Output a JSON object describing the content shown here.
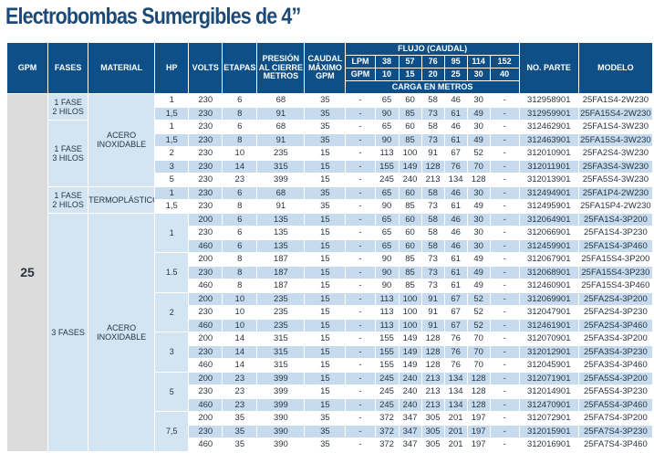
{
  "title": "Electrobombas Sumergibles de 4”",
  "colors": {
    "header": "#0d4f86",
    "stripe": "#c6dcee",
    "group": "#d3e5f3",
    "gpm_cell": "#dcdcdc"
  },
  "headers": {
    "gpm": "GPM",
    "fases": "FASES",
    "material": "MATERIAL",
    "hp": "HP",
    "volts": "VOLTS",
    "etapas": "ETAPAS",
    "presion": "PRESIÓN\nAL CIERRE\nMETROS",
    "caudal": "CAUDAL\nMÁXIMO\nGPM",
    "flujo": "FLUJO (CAUDAL)",
    "lpm_row": [
      "LPM",
      "38",
      "57",
      "76",
      "95",
      "114",
      "152"
    ],
    "gpm_row": [
      "GPM",
      "10",
      "15",
      "20",
      "25",
      "30",
      "40"
    ],
    "carga": "CARGA EN METROS",
    "parte": "NO. PARTE",
    "modelo": "MODELO"
  },
  "gpm_groups": [
    {
      "label": "25",
      "rows": 27
    }
  ],
  "fases_groups": [
    {
      "label": "1 FASE\n2 HILOS",
      "rows": 2
    },
    {
      "label": "1 FASE\n3 HILOS",
      "rows": 5
    },
    {
      "label": "1 FASE\n2 HILOS",
      "rows": 2
    },
    {
      "label": "3 FASES",
      "rows": 18
    }
  ],
  "material_groups": [
    {
      "label": "ACERO\nINOXIDABLE",
      "rows": 7
    },
    {
      "label": "TERMOPLÁSTICO",
      "rows": 2
    },
    {
      "label": "ACERO\nINOXIDABLE",
      "rows": 18
    }
  ],
  "hp_groups": [
    {
      "label": "1",
      "rows": 1
    },
    {
      "label": "1,5",
      "rows": 1
    },
    {
      "label": "1",
      "rows": 1
    },
    {
      "label": "1,5",
      "rows": 1
    },
    {
      "label": "2",
      "rows": 1
    },
    {
      "label": "3",
      "rows": 1
    },
    {
      "label": "5",
      "rows": 1
    },
    {
      "label": "1",
      "rows": 1
    },
    {
      "label": "1,5",
      "rows": 1
    },
    {
      "label": "1",
      "rows": 3
    },
    {
      "label": "1.5",
      "rows": 3
    },
    {
      "label": "2",
      "rows": 3
    },
    {
      "label": "3",
      "rows": 3
    },
    {
      "label": "5",
      "rows": 3
    },
    {
      "label": "7,5",
      "rows": 3
    }
  ],
  "rows": [
    [
      "230",
      "6",
      "68",
      "35",
      "-",
      "65",
      "60",
      "58",
      "46",
      "30",
      "-",
      "312958901",
      "25FA1S4-2W230"
    ],
    [
      "230",
      "8",
      "91",
      "35",
      "-",
      "90",
      "85",
      "73",
      "61",
      "49",
      "-",
      "312959901",
      "25FA15S4-2W230"
    ],
    [
      "230",
      "6",
      "68",
      "35",
      "-",
      "65",
      "60",
      "58",
      "46",
      "30",
      "-",
      "312462901",
      "25FA1S4-3W230"
    ],
    [
      "230",
      "8",
      "91",
      "35",
      "-",
      "90",
      "85",
      "73",
      "61",
      "49",
      "-",
      "312463901",
      "25FA15S4-3W230"
    ],
    [
      "230",
      "10",
      "235",
      "15",
      "-",
      "113",
      "100",
      "91",
      "67",
      "52",
      "-",
      "312010901",
      "25FA2S4-3W230"
    ],
    [
      "230",
      "14",
      "315",
      "15",
      "-",
      "155",
      "149",
      "128",
      "76",
      "70",
      "-",
      "312011901",
      "25FA3S4-3W230"
    ],
    [
      "230",
      "23",
      "399",
      "15",
      "-",
      "245",
      "240",
      "213",
      "134",
      "128",
      "-",
      "312013901",
      "25FA5S4-3W230"
    ],
    [
      "230",
      "6",
      "68",
      "35",
      "-",
      "65",
      "60",
      "58",
      "46",
      "30",
      "-",
      "312494901",
      "25FA1P4-2W230"
    ],
    [
      "230",
      "8",
      "91",
      "35",
      "-",
      "90",
      "85",
      "73",
      "61",
      "49",
      "-",
      "312495901",
      "25FA15P4-2W230"
    ],
    [
      "200",
      "6",
      "135",
      "15",
      "-",
      "65",
      "60",
      "58",
      "46",
      "30",
      "-",
      "312064901",
      "25FA1S4-3P200"
    ],
    [
      "230",
      "6",
      "135",
      "15",
      "-",
      "65",
      "60",
      "58",
      "46",
      "30",
      "-",
      "312066901",
      "25FA1S4-3P230"
    ],
    [
      "460",
      "6",
      "135",
      "15",
      "-",
      "65",
      "60",
      "58",
      "46",
      "30",
      "-",
      "312459901",
      "25FA1S4-3P460"
    ],
    [
      "200",
      "8",
      "187",
      "15",
      "-",
      "90",
      "85",
      "73",
      "61",
      "49",
      "-",
      "312067901",
      "25FA15S4-3P200"
    ],
    [
      "230",
      "8",
      "187",
      "15",
      "-",
      "90",
      "85",
      "73",
      "61",
      "49",
      "-",
      "312068901",
      "25FA15S4-3P230"
    ],
    [
      "460",
      "8",
      "187",
      "15",
      "-",
      "90",
      "85",
      "73",
      "61",
      "49",
      "-",
      "312460901",
      "25FA15S4-3P460"
    ],
    [
      "200",
      "10",
      "235",
      "15",
      "-",
      "113",
      "100",
      "91",
      "67",
      "52",
      "-",
      "312069901",
      "25FA2S4-3P200"
    ],
    [
      "230",
      "10",
      "235",
      "15",
      "-",
      "113",
      "100",
      "91",
      "67",
      "52",
      "-",
      "312047901",
      "25FA2S4-3P230"
    ],
    [
      "460",
      "10",
      "235",
      "15",
      "-",
      "113",
      "100",
      "91",
      "67",
      "52",
      "-",
      "312461901",
      "25FA2S4-3P460"
    ],
    [
      "200",
      "14",
      "315",
      "15",
      "-",
      "155",
      "149",
      "128",
      "76",
      "70",
      "-",
      "312070901",
      "25FA3S4-3P200"
    ],
    [
      "230",
      "14",
      "315",
      "15",
      "-",
      "155",
      "149",
      "128",
      "76",
      "70",
      "-",
      "312012901",
      "25FA3S4-3P230"
    ],
    [
      "460",
      "14",
      "315",
      "15",
      "-",
      "155",
      "149",
      "128",
      "76",
      "70",
      "-",
      "312045901",
      "25FA3S4-3P460"
    ],
    [
      "200",
      "23",
      "399",
      "15",
      "-",
      "245",
      "240",
      "213",
      "134",
      "128",
      "-",
      "312071901",
      "25FA5S4-3P200"
    ],
    [
      "230",
      "23",
      "399",
      "15",
      "-",
      "245",
      "240",
      "213",
      "134",
      "128",
      "-",
      "312014901",
      "25FA5S4-3P230"
    ],
    [
      "460",
      "23",
      "399",
      "15",
      "-",
      "245",
      "240",
      "213",
      "134",
      "128",
      "-",
      "312470901",
      "25FA5S4-3P460"
    ],
    [
      "200",
      "35",
      "390",
      "35",
      "-",
      "372",
      "347",
      "305",
      "201",
      "197",
      "-",
      "312072901",
      "25FA7S4-3P200"
    ],
    [
      "230",
      "35",
      "390",
      "35",
      "-",
      "372",
      "347",
      "305",
      "201",
      "197",
      "-",
      "312015901",
      "25FA7S4-3P230"
    ],
    [
      "460",
      "35",
      "390",
      "35",
      "-",
      "372",
      "347",
      "305",
      "201",
      "197",
      "-",
      "312016901",
      "25FA7S4-3P460"
    ]
  ]
}
